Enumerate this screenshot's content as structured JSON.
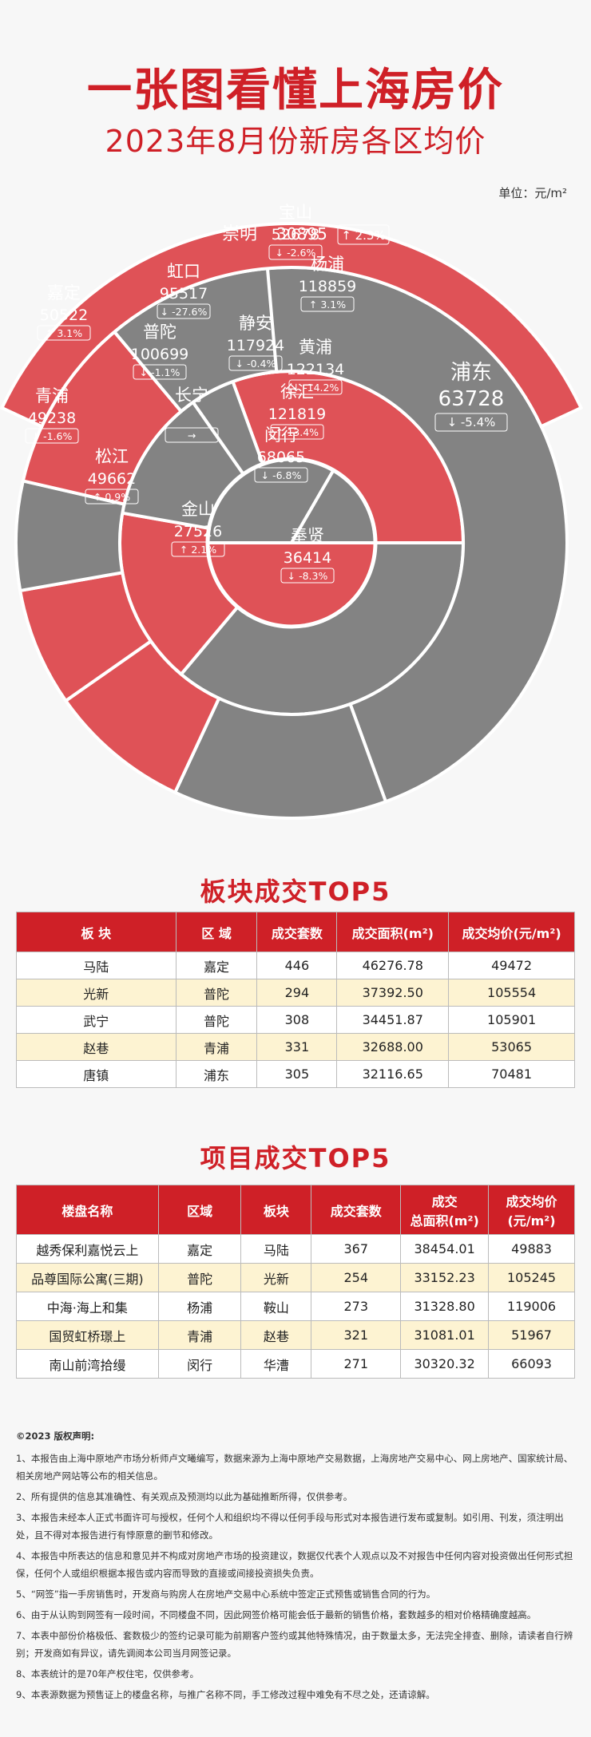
{
  "title": "一张图看懂上海房价",
  "subtitle": "2023年8月份新房各区均价",
  "unit": "单位：元/m²",
  "chart_data": {
    "type": "sunburst",
    "title": "2023年8月份新房各区均价",
    "unit": "元/m²",
    "colors": {
      "rise": "#df5257",
      "fall": "#838383",
      "flat": "#df5257",
      "chongming": "#df5257"
    },
    "rings": [
      {
        "districts": [
          {
            "name": "静安",
            "price": "117924",
            "change": "↓ -0.4%",
            "trend": "fall"
          },
          {
            "name": "黄浦",
            "price": "122134",
            "change": "↓ -14.2%",
            "trend": "fall"
          },
          {
            "name": "徐汇",
            "price": "121819",
            "change": "↑ 13.4%",
            "trend": "rise"
          }
        ]
      },
      {
        "districts": [
          {
            "name": "杨浦",
            "price": "118859",
            "change": "↑ 3.1%",
            "trend": "rise"
          },
          {
            "name": "闵行",
            "price": "68065",
            "change": "↓ -6.8%",
            "trend": "fall"
          },
          {
            "name": "长宁",
            "price": "",
            "change": "→",
            "trend": "flat"
          },
          {
            "name": "普陀",
            "price": "100699",
            "change": "↓ -1.1%",
            "trend": "fall"
          },
          {
            "name": "虹口",
            "price": "95517",
            "change": "↓ -27.6%",
            "trend": "fall"
          }
        ]
      },
      {
        "districts": [
          {
            "name": "浦东",
            "price": "63728",
            "change": "↓ -5.4%",
            "trend": "fall"
          },
          {
            "name": "奉贤",
            "price": "36414",
            "change": "↓ -8.3%",
            "trend": "fall"
          },
          {
            "name": "金山",
            "price": "27526",
            "change": "↑ 2.1%",
            "trend": "rise"
          },
          {
            "name": "松江",
            "price": "49662",
            "change": "↑ 0.9%",
            "trend": "rise"
          },
          {
            "name": "青浦",
            "price": "49238",
            "change": "↓ -1.6%",
            "trend": "fall"
          },
          {
            "name": "嘉定",
            "price": "50522",
            "change": "↑ 3.1%",
            "trend": "rise"
          },
          {
            "name": "宝山",
            "price": "52678",
            "change": "↓ -2.6%",
            "trend": "fall"
          }
        ]
      },
      {
        "districts": [
          {
            "name": "崇明",
            "price": "30895",
            "change": "↑ 2.3%",
            "trend": "rise"
          }
        ]
      }
    ]
  },
  "table1": {
    "title": "板块成交TOP5",
    "headers": [
      "板 块",
      "区 域",
      "成交套数",
      "成交面积(m²)",
      "成交均价(元/m²)"
    ],
    "rows": [
      [
        "马陆",
        "嘉定",
        "446",
        "46276.78",
        "49472"
      ],
      [
        "光新",
        "普陀",
        "294",
        "37392.50",
        "105554"
      ],
      [
        "武宁",
        "普陀",
        "308",
        "34451.87",
        "105901"
      ],
      [
        "赵巷",
        "青浦",
        "331",
        "32688.00",
        "53065"
      ],
      [
        "唐镇",
        "浦东",
        "305",
        "32116.65",
        "70481"
      ]
    ]
  },
  "table2": {
    "title": "项目成交TOP5",
    "headers": [
      "楼盘名称",
      "区域",
      "板块",
      "成交套数",
      "成交\n总面积(m²)",
      "成交均价\n(元/m²)"
    ],
    "rows": [
      [
        "越秀保利嘉悦云上",
        "嘉定",
        "马陆",
        "367",
        "38454.01",
        "49883"
      ],
      [
        "品尊国际公寓(三期)",
        "普陀",
        "光新",
        "254",
        "33152.23",
        "105245"
      ],
      [
        "中海·海上和集",
        "杨浦",
        "鞍山",
        "273",
        "31328.80",
        "119006"
      ],
      [
        "国贸虹桥璟上",
        "青浦",
        "赵巷",
        "321",
        "31081.01",
        "51967"
      ],
      [
        "南山前湾拾缦",
        "闵行",
        "华漕",
        "271",
        "30320.32",
        "66093"
      ]
    ]
  },
  "notes": {
    "title": "©2023 版权声明:",
    "items": [
      "1、本报告由上海中原地产市场分析师卢文曦编写，数据来源为上海中原地产交易数据，上海房地产交易中心、网上房地产、国家统计局、相关房地产网站等公布的相关信息。",
      "2、所有提供的信息其准确性、有关观点及预测均以此为基础推断所得，仅供参考。",
      "3、本报告未经本人正式书面许可与授权，任何个人和组织均不得以任何手段与形式对本报告进行发布或复制。如引用、刊发，须注明出处，且不得对本报告进行有悖原意的删节和修改。",
      "4、本报告中所表达的信息和意见并不构成对房地产市场的投资建议，数据仅代表个人观点以及不对报告中任何内容对投资做出任何形式担保，任何个人或组织根据本报告或内容而导致的直接或间接投资损失负责。",
      "5、“网签”指一手房销售时，开发商与购房人在房地产交易中心系统中签定正式预售或销售合同的行为。",
      "6、由于从认购到网签有一段时间，不同楼盘不同，因此网签价格可能会低于最新的销售价格，套数越多的相对价格精确度越高。",
      "7、本表中部份价格极低、套数极少的签约记录可能为前期客户签约或其他特殊情况，由于数量太多，无法完全排查、删除，请读者自行辨别；开发商如有异议，请先调阅本公司当月网签记录。",
      "8、本表统计的是70年产权住宅，仅供参考。",
      "9、本表源数据为预售证上的楼盘名称，与推广名称不同，手工修改过程中难免有不尽之处，还请谅解。"
    ]
  }
}
